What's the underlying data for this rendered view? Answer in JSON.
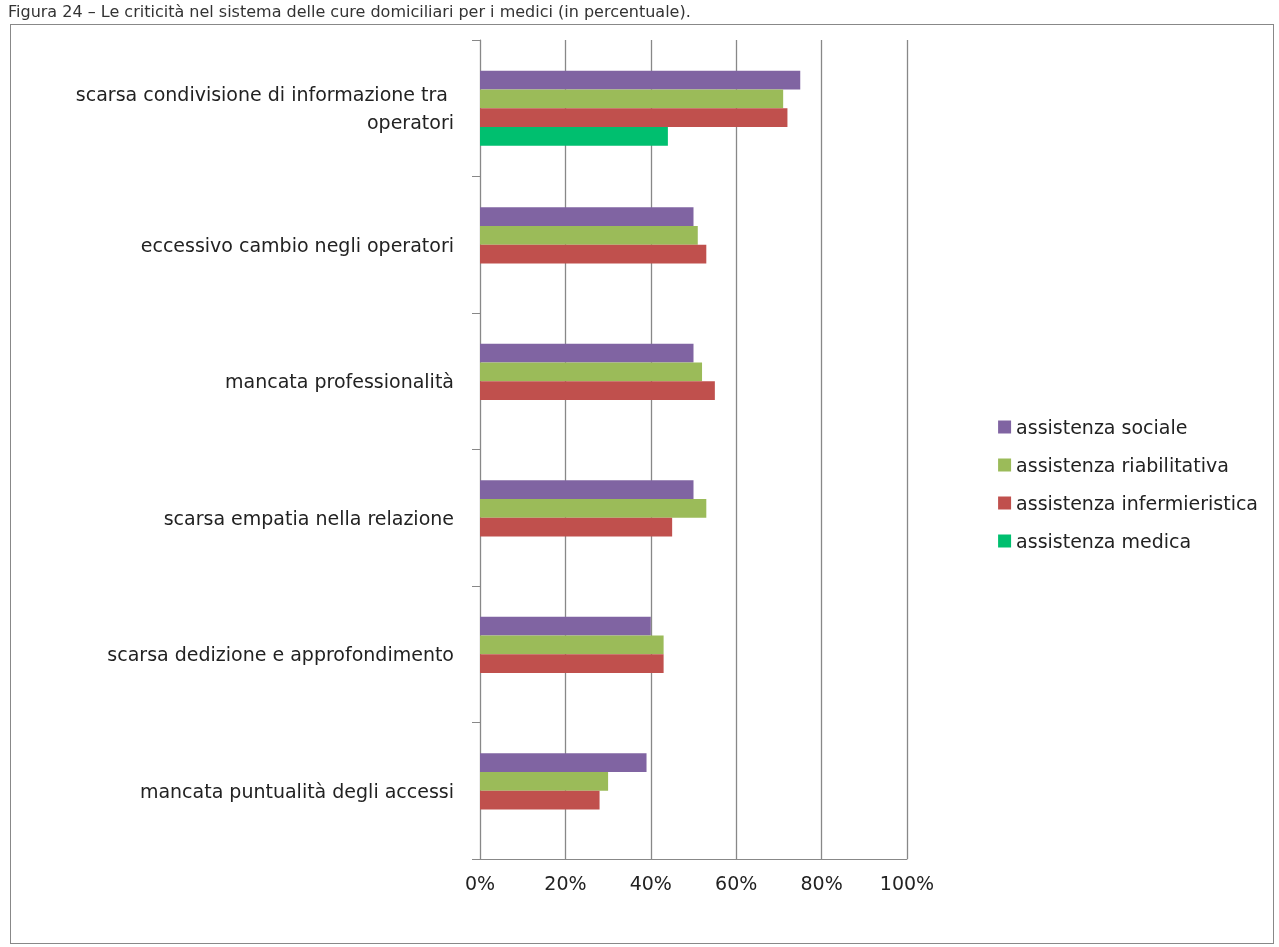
{
  "chart_data": {
    "type": "bar",
    "orientation": "horizontal",
    "title": "Figura 24 – Le criticità nel sistema delle cure domiciliari per i medici (in percentuale).",
    "categories": [
      "scarsa condivisione di informazione tra operatori",
      "eccessivo cambio negli operatori",
      "mancata professionalità",
      "scarsa empatia nella relazione",
      "scarsa dedizione e approfondimento",
      "mancata puntualità degli accessi"
    ],
    "series": [
      {
        "name": "assistenza sociale",
        "color": "#8064a2",
        "values": [
          75,
          50,
          50,
          50,
          40,
          39
        ]
      },
      {
        "name": "assistenza riabilitativa",
        "color": "#9bbb59",
        "values": [
          71,
          51,
          52,
          53,
          43,
          30
        ]
      },
      {
        "name": "assistenza infermieristica",
        "color": "#c0504d",
        "values": [
          72,
          53,
          55,
          45,
          43,
          28
        ]
      },
      {
        "name": "assistenza medica",
        "color": "#00bf6f",
        "values": [
          44,
          null,
          null,
          null,
          null,
          null
        ]
      }
    ],
    "xlim": [
      0,
      100
    ],
    "xticks": [
      {
        "value": 0,
        "label": "0%"
      },
      {
        "value": 20,
        "label": "20%"
      },
      {
        "value": 40,
        "label": "40%"
      },
      {
        "value": 60,
        "label": "60%"
      },
      {
        "value": 80,
        "label": "80%"
      },
      {
        "value": 100,
        "label": "100%"
      }
    ],
    "grid": "x",
    "legend": "right"
  }
}
